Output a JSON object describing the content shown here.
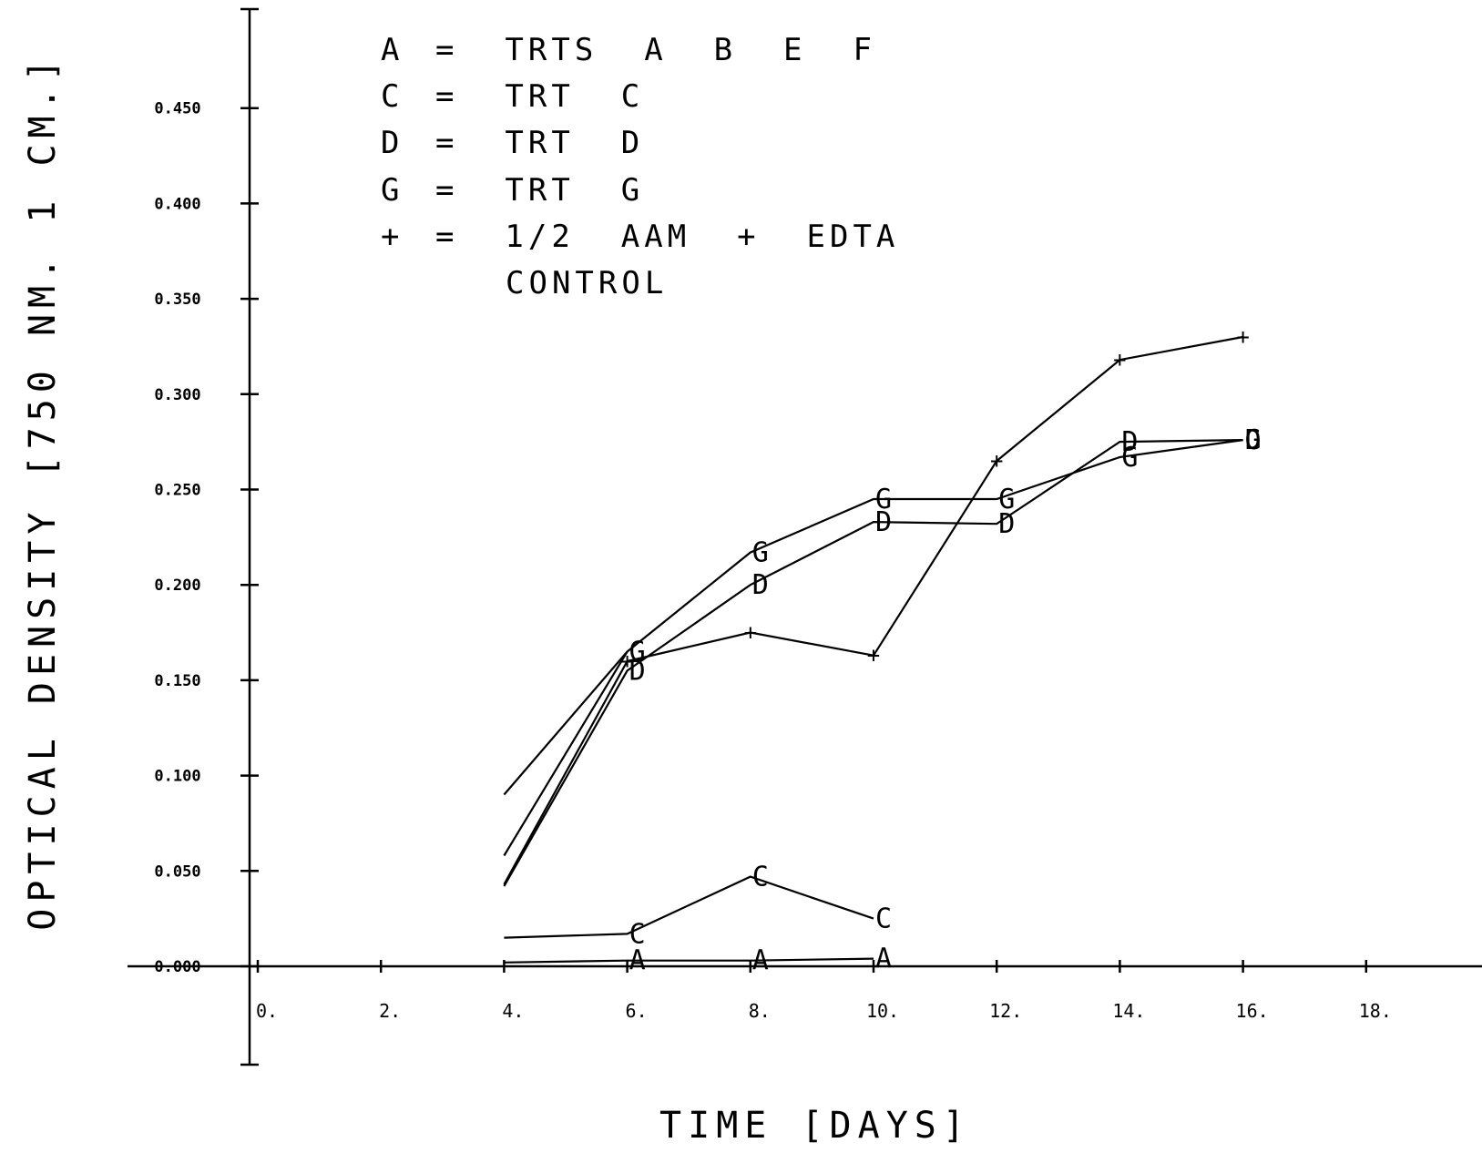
{
  "chart_data": {
    "type": "line",
    "xlabel": "TIME [DAYS]",
    "ylabel": "OPTICAL DENSITY [750 NM. 1 CM.]",
    "xlim": [
      0,
      20
    ],
    "ylim": [
      0,
      0.5
    ],
    "x_ticks": [
      0,
      2,
      4,
      6,
      8,
      10,
      12,
      14,
      16,
      18
    ],
    "x_tick_labels": [
      "0.",
      "2.",
      "4.",
      "6.",
      "8.",
      "10.",
      "12.",
      "14.",
      "16.",
      "18."
    ],
    "y_ticks": [
      0,
      0.05,
      0.1,
      0.15,
      0.2,
      0.25,
      0.3,
      0.35,
      0.4,
      0.45
    ],
    "y_tick_labels": [
      "0.000",
      "0.050",
      "0.100",
      "0.150",
      "0.200",
      "0.250",
      "0.300",
      "0.350",
      "0.400",
      "0.450"
    ],
    "legend": [
      {
        "symbol": "A",
        "text": "=  TRTS  A  B  E  F"
      },
      {
        "symbol": "C",
        "text": "=  TRT  C"
      },
      {
        "symbol": "D",
        "text": "=  TRT  D"
      },
      {
        "symbol": "G",
        "text": "=  TRT  G"
      },
      {
        "symbol": "+",
        "text": "=  1/2  AAM  +  EDTA"
      },
      {
        "symbol": "",
        "text": "CONTROL"
      }
    ],
    "series": [
      {
        "marker": "A",
        "x": [
          4,
          6,
          8,
          10
        ],
        "y": [
          0.002,
          0.003,
          0.003,
          0.004
        ]
      },
      {
        "marker": "C",
        "x": [
          4,
          6,
          8,
          10
        ],
        "y": [
          0.015,
          0.017,
          0.047,
          0.025
        ]
      },
      {
        "marker": "D",
        "x": [
          4,
          6,
          8,
          10,
          12,
          14,
          16
        ],
        "y": [
          0.042,
          0.155,
          0.2,
          0.233,
          0.232,
          0.275,
          0.276
        ]
      },
      {
        "marker": "G",
        "x": [
          4,
          6,
          8,
          10,
          12,
          14,
          16
        ],
        "y": [
          0.058,
          0.165,
          0.217,
          0.245,
          0.245,
          0.267,
          0.276
        ]
      },
      {
        "marker": "+",
        "x": [
          4,
          6,
          8,
          10,
          12,
          14,
          16
        ],
        "y": [
          0.043,
          0.16,
          0.175,
          0.163,
          0.265,
          0.318,
          0.33
        ]
      },
      {
        "marker": "",
        "x": [
          4,
          6
        ],
        "y": [
          0.09,
          0.165
        ]
      }
    ]
  }
}
